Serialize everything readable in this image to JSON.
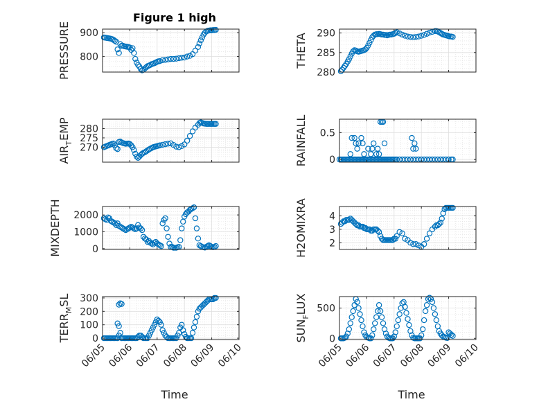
{
  "figure_title": "Figure 1 high",
  "xlabel": "Time",
  "colors": {
    "marker": "#0072BD",
    "axis": "#262626",
    "grid": "#DFDFDF",
    "background": "#FFFFFF"
  },
  "chart_data": [
    {
      "type": "scatter",
      "ylabel": "PRESSURE",
      "ylim": [
        735,
        915
      ],
      "yticks": [
        800,
        900
      ],
      "xlim": [
        "06/05",
        "06/10"
      ],
      "xticks": [
        "06/05",
        "06/06",
        "06/07",
        "06/08",
        "06/09",
        "06/10"
      ],
      "x_days": [
        0.05,
        0.1,
        0.15,
        0.2,
        0.25,
        0.3,
        0.35,
        0.4,
        0.45,
        0.5,
        0.55,
        0.6,
        0.65,
        0.7,
        0.75,
        0.8,
        0.85,
        0.9,
        0.95,
        1.0,
        1.05,
        1.1,
        1.15,
        1.2,
        1.25,
        1.3,
        1.35,
        1.4,
        1.45,
        1.5,
        1.55,
        1.6,
        1.65,
        1.7,
        1.75,
        1.8,
        1.85,
        1.9,
        1.95,
        2.0,
        2.05,
        2.1,
        2.2,
        2.3,
        2.4,
        2.5,
        2.6,
        2.7,
        2.8,
        2.9,
        3.0,
        3.1,
        3.2,
        3.3,
        3.4,
        3.5,
        3.55,
        3.6,
        3.65,
        3.7,
        3.75,
        3.8,
        3.85,
        3.9,
        3.95,
        4.0,
        4.05,
        4.1,
        4.15
      ],
      "y": [
        880,
        879,
        878,
        877,
        876,
        875,
        873,
        870,
        866,
        862,
        830,
        815,
        852,
        845,
        845,
        843,
        842,
        841,
        840,
        838,
        828,
        835,
        815,
        790,
        775,
        765,
        758,
        748,
        742,
        745,
        750,
        755,
        760,
        762,
        765,
        768,
        770,
        772,
        775,
        778,
        780,
        781,
        785,
        786,
        788,
        790,
        790,
        791,
        793,
        795,
        796,
        800,
        803,
        810,
        825,
        840,
        855,
        868,
        880,
        892,
        900,
        905,
        908,
        909,
        910,
        910,
        911,
        911,
        912
      ]
    },
    {
      "type": "scatter",
      "ylabel": "THETA",
      "ylim": [
        280,
        291
      ],
      "yticks": [
        280,
        285,
        290
      ],
      "xlim": [
        "06/05",
        "06/10"
      ],
      "xticks": [
        "06/05",
        "06/06",
        "06/07",
        "06/08",
        "06/09",
        "06/10"
      ],
      "x_days": [
        0.05,
        0.1,
        0.15,
        0.2,
        0.25,
        0.3,
        0.35,
        0.4,
        0.45,
        0.5,
        0.55,
        0.6,
        0.65,
        0.7,
        0.75,
        0.8,
        0.85,
        0.9,
        0.95,
        1.0,
        1.05,
        1.1,
        1.15,
        1.2,
        1.25,
        1.3,
        1.35,
        1.4,
        1.45,
        1.5,
        1.55,
        1.6,
        1.65,
        1.7,
        1.75,
        1.8,
        1.85,
        1.9,
        1.95,
        2.0,
        2.05,
        2.1,
        2.2,
        2.3,
        2.4,
        2.5,
        2.6,
        2.7,
        2.8,
        2.9,
        3.0,
        3.1,
        3.2,
        3.3,
        3.4,
        3.5,
        3.55,
        3.6,
        3.65,
        3.7,
        3.75,
        3.8,
        3.85,
        3.9,
        3.95,
        4.0,
        4.05,
        4.1,
        4.15
      ],
      "y": [
        280.2,
        280.6,
        281.1,
        281.6,
        282.1,
        282.7,
        283.3,
        284.0,
        284.7,
        285.3,
        285.6,
        285.5,
        285.3,
        285.2,
        285.3,
        285.4,
        285.5,
        285.6,
        285.8,
        286.2,
        286.8,
        287.5,
        288.2,
        288.9,
        289.3,
        289.6,
        289.7,
        289.7,
        289.8,
        289.7,
        289.6,
        289.6,
        289.5,
        289.5,
        289.4,
        289.5,
        289.6,
        289.6,
        289.7,
        289.8,
        290.0,
        290.2,
        289.9,
        289.6,
        289.3,
        289.1,
        289.0,
        288.9,
        289.0,
        289.1,
        289.3,
        289.5,
        289.8,
        290.1,
        290.3,
        290.5,
        290.5,
        290.4,
        290.2,
        290.0,
        289.8,
        289.6,
        289.5,
        289.4,
        289.3,
        289.2,
        289.1,
        289.1,
        289.0
      ]
    },
    {
      "type": "scatter",
      "ylabel": "AIR_TEMP",
      "ylim": [
        262,
        285
      ],
      "yticks": [
        270,
        275,
        280
      ],
      "xlim": [
        "06/05",
        "06/10"
      ],
      "xticks": [
        "06/05",
        "06/06",
        "06/07",
        "06/08",
        "06/09",
        "06/10"
      ],
      "x_days": [
        0.05,
        0.1,
        0.15,
        0.2,
        0.25,
        0.3,
        0.35,
        0.4,
        0.45,
        0.5,
        0.55,
        0.6,
        0.65,
        0.7,
        0.75,
        0.8,
        0.85,
        0.9,
        0.95,
        1.0,
        1.05,
        1.1,
        1.15,
        1.2,
        1.25,
        1.3,
        1.35,
        1.4,
        1.45,
        1.5,
        1.55,
        1.6,
        1.65,
        1.7,
        1.75,
        1.8,
        1.85,
        1.9,
        1.95,
        2.0,
        2.05,
        2.1,
        2.2,
        2.3,
        2.4,
        2.5,
        2.6,
        2.7,
        2.8,
        2.9,
        3.0,
        3.1,
        3.2,
        3.3,
        3.4,
        3.5,
        3.55,
        3.6,
        3.65,
        3.7,
        3.75,
        3.8,
        3.85,
        3.9,
        3.95,
        4.0,
        4.05,
        4.1,
        4.15
      ],
      "y": [
        270.0,
        270.3,
        270.6,
        270.9,
        271.2,
        271.5,
        271.8,
        272.0,
        271.0,
        269.5,
        269.0,
        272.8,
        273.0,
        272.5,
        272.2,
        272.0,
        271.8,
        271.9,
        272.0,
        271.7,
        271.0,
        270.0,
        268.5,
        266.5,
        265.0,
        264.3,
        265.0,
        265.8,
        266.5,
        267.0,
        267.3,
        267.8,
        268.3,
        268.8,
        269.2,
        269.6,
        270.0,
        270.2,
        270.4,
        270.6,
        270.8,
        271.0,
        271.3,
        271.6,
        271.9,
        272.1,
        271.2,
        270.3,
        270.0,
        270.6,
        271.5,
        273.5,
        276.0,
        278.5,
        280.5,
        282.0,
        283.0,
        283.3,
        283.0,
        282.7,
        282.6,
        282.5,
        282.5,
        282.5,
        282.5,
        282.5,
        282.5,
        282.5,
        282.5
      ]
    },
    {
      "type": "scatter",
      "ylabel": "RAINFALL",
      "ylim": [
        -0.05,
        0.75
      ],
      "yticks": [
        0,
        0.5
      ],
      "xlim": [
        "06/05",
        "06/10"
      ],
      "xticks": [
        "06/05",
        "06/06",
        "06/07",
        "06/08",
        "06/09",
        "06/10"
      ],
      "x_days": [
        0.0,
        0.05,
        0.1,
        0.15,
        0.2,
        0.25,
        0.3,
        0.35,
        0.4,
        0.45,
        0.5,
        0.55,
        0.6,
        0.65,
        0.7,
        0.75,
        0.8,
        0.85,
        0.9,
        0.95,
        1.0,
        1.05,
        1.1,
        1.15,
        1.2,
        1.25,
        1.3,
        1.35,
        1.4,
        1.45,
        1.5,
        1.55,
        1.6,
        1.65,
        1.7,
        1.75,
        1.8,
        1.85,
        1.9,
        1.95,
        2.0,
        2.05,
        2.1,
        2.2,
        2.3,
        2.4,
        2.5,
        2.6,
        2.7,
        2.8,
        2.9,
        3.0,
        3.1,
        3.2,
        3.3,
        3.4,
        3.5,
        3.6,
        3.7,
        3.8,
        3.9,
        4.0,
        4.1,
        4.15,
        0.4,
        0.45,
        0.55,
        0.6,
        0.65,
        0.7,
        0.8,
        0.85,
        0.9,
        1.05,
        1.15,
        1.2,
        1.25,
        1.35,
        1.4,
        1.45,
        1.5,
        1.55,
        1.6,
        1.65,
        2.65,
        2.7,
        2.75,
        2.8
      ],
      "y": [
        0,
        0,
        0,
        0,
        0,
        0,
        0,
        0,
        0,
        0,
        0,
        0,
        0,
        0,
        0,
        0,
        0,
        0,
        0,
        0,
        0,
        0,
        0,
        0,
        0,
        0,
        0,
        0,
        0,
        0,
        0,
        0,
        0,
        0,
        0,
        0,
        0,
        0,
        0,
        0,
        0,
        0,
        0,
        0,
        0,
        0,
        0,
        0,
        0,
        0,
        0,
        0,
        0,
        0,
        0,
        0,
        0,
        0,
        0,
        0,
        0,
        0,
        0,
        0,
        0.1,
        0.4,
        0.4,
        0.3,
        0.2,
        0.3,
        0.4,
        0.3,
        0.1,
        0.2,
        0.1,
        0.2,
        0.3,
        0.1,
        0.2,
        0.1,
        0.7,
        0.7,
        0.7,
        0.3,
        0.4,
        0.2,
        0.3,
        0.2
      ]
    },
    {
      "type": "scatter",
      "ylabel": "MIXDEPTH",
      "ylim": [
        -50,
        2500
      ],
      "yticks": [
        0,
        1000,
        2000
      ],
      "xlim": [
        "06/05",
        "06/10"
      ],
      "xticks": [
        "06/05",
        "06/06",
        "06/07",
        "06/08",
        "06/09",
        "06/10"
      ],
      "x_days": [
        0.05,
        0.1,
        0.15,
        0.2,
        0.25,
        0.3,
        0.35,
        0.4,
        0.45,
        0.5,
        0.55,
        0.6,
        0.65,
        0.7,
        0.75,
        0.8,
        0.85,
        0.9,
        0.95,
        1.0,
        1.05,
        1.1,
        1.15,
        1.2,
        1.25,
        1.3,
        1.35,
        1.4,
        1.45,
        1.5,
        1.55,
        1.6,
        1.65,
        1.7,
        1.75,
        1.8,
        1.85,
        1.9,
        1.95,
        2.0,
        2.05,
        2.1,
        2.15,
        2.2,
        2.25,
        2.3,
        2.35,
        2.4,
        2.45,
        2.5,
        2.55,
        2.6,
        2.65,
        2.7,
        2.75,
        2.8,
        2.85,
        2.9,
        2.95,
        3.0,
        3.05,
        3.1,
        3.15,
        3.2,
        3.25,
        3.3,
        3.35,
        3.4,
        3.45,
        3.5,
        3.55,
        3.6,
        3.65,
        3.7,
        3.75,
        3.8,
        3.85,
        3.9,
        3.95,
        4.0,
        4.05,
        4.1,
        4.15
      ],
      "y": [
        1800,
        1750,
        1700,
        1850,
        1800,
        1650,
        1600,
        1550,
        1500,
        1400,
        1500,
        1350,
        1300,
        1250,
        1200,
        1150,
        1100,
        1150,
        1200,
        1250,
        1300,
        1250,
        1200,
        1150,
        1200,
        1400,
        1250,
        1200,
        1100,
        700,
        600,
        550,
        400,
        450,
        350,
        300,
        250,
        350,
        400,
        300,
        250,
        200,
        150,
        1500,
        1700,
        1800,
        1200,
        700,
        300,
        100,
        100,
        50,
        50,
        50,
        80,
        100,
        500,
        1200,
        1600,
        1900,
        2050,
        2150,
        2200,
        2300,
        2350,
        2400,
        2450,
        1800,
        1200,
        600,
        200,
        150,
        100,
        80,
        60,
        100,
        150,
        200,
        150,
        100,
        80,
        100,
        150
      ]
    },
    {
      "type": "scatter",
      "ylabel": "H2OMIXRA",
      "ylim": [
        1.5,
        4.7
      ],
      "yticks": [
        2,
        3,
        4
      ],
      "xlim": [
        "06/05",
        "06/10"
      ],
      "xticks": [
        "06/05",
        "06/06",
        "06/07",
        "06/08",
        "06/09",
        "06/10"
      ],
      "x_days": [
        0.05,
        0.1,
        0.15,
        0.2,
        0.25,
        0.3,
        0.35,
        0.4,
        0.45,
        0.5,
        0.55,
        0.6,
        0.65,
        0.7,
        0.75,
        0.8,
        0.85,
        0.9,
        0.95,
        1.0,
        1.05,
        1.1,
        1.15,
        1.2,
        1.25,
        1.3,
        1.35,
        1.4,
        1.45,
        1.5,
        1.55,
        1.6,
        1.65,
        1.7,
        1.75,
        1.8,
        1.85,
        1.9,
        1.95,
        2.0,
        2.05,
        2.1,
        2.2,
        2.3,
        2.4,
        2.5,
        2.6,
        2.7,
        2.8,
        2.9,
        3.0,
        3.1,
        3.2,
        3.3,
        3.4,
        3.5,
        3.55,
        3.6,
        3.65,
        3.7,
        3.75,
        3.8,
        3.85,
        3.9,
        3.95,
        4.0,
        4.05,
        4.1,
        4.15
      ],
      "y": [
        3.4,
        3.5,
        3.6,
        3.6,
        3.7,
        3.7,
        3.7,
        3.8,
        3.7,
        3.6,
        3.5,
        3.4,
        3.3,
        3.3,
        3.2,
        3.2,
        3.2,
        3.1,
        3.1,
        3.0,
        3.0,
        3.0,
        2.9,
        2.9,
        3.0,
        3.0,
        3.0,
        2.9,
        2.8,
        2.5,
        2.3,
        2.2,
        2.2,
        2.2,
        2.2,
        2.2,
        2.2,
        2.2,
        2.2,
        2.3,
        2.3,
        2.5,
        2.8,
        2.7,
        2.3,
        2.2,
        2.0,
        1.9,
        1.9,
        1.8,
        1.7,
        1.9,
        2.3,
        2.7,
        3.0,
        3.2,
        3.3,
        3.3,
        3.4,
        3.5,
        3.8,
        4.2,
        4.5,
        4.6,
        4.6,
        4.6,
        4.6,
        4.6,
        4.6
      ]
    },
    {
      "type": "scatter",
      "ylabel": "TERR_MSL",
      "ylim": [
        -10,
        310
      ],
      "yticks": [
        0,
        100,
        200,
        300
      ],
      "xlim": [
        "06/05",
        "06/10"
      ],
      "xticks": [
        "06/05",
        "06/06",
        "06/07",
        "06/08",
        "06/09",
        "06/10"
      ],
      "x_days": [
        0.05,
        0.1,
        0.15,
        0.2,
        0.25,
        0.3,
        0.35,
        0.4,
        0.45,
        0.5,
        0.55,
        0.6,
        0.65,
        0.7,
        0.75,
        0.8,
        0.85,
        0.9,
        0.95,
        1.0,
        1.05,
        1.1,
        1.15,
        1.2,
        1.25,
        1.3,
        1.35,
        1.4,
        1.45,
        1.5,
        1.55,
        1.6,
        1.65,
        1.7,
        1.75,
        1.8,
        1.85,
        1.9,
        1.95,
        2.0,
        2.05,
        2.1,
        2.15,
        2.2,
        2.25,
        2.3,
        2.35,
        2.4,
        2.45,
        2.5,
        2.55,
        2.6,
        2.65,
        2.7,
        2.75,
        2.8,
        2.85,
        2.9,
        2.95,
        3.0,
        3.05,
        3.1,
        3.15,
        3.2,
        3.25,
        3.3,
        3.35,
        3.4,
        3.45,
        3.5,
        3.55,
        3.6,
        3.65,
        3.7,
        3.75,
        3.8,
        3.85,
        3.9,
        3.95,
        4.0,
        4.05,
        4.1,
        4.15,
        0.6,
        0.65,
        0.7,
        0.55,
        0.6
      ],
      "y": [
        0,
        0,
        0,
        0,
        0,
        0,
        0,
        0,
        0,
        0,
        0,
        20,
        40,
        0,
        0,
        0,
        0,
        0,
        0,
        0,
        0,
        0,
        0,
        0,
        0,
        10,
        20,
        20,
        10,
        0,
        0,
        0,
        0,
        20,
        40,
        60,
        80,
        100,
        120,
        140,
        130,
        120,
        100,
        60,
        40,
        20,
        10,
        0,
        0,
        0,
        0,
        0,
        0,
        0,
        20,
        40,
        80,
        100,
        60,
        30,
        10,
        0,
        0,
        0,
        0,
        40,
        80,
        120,
        160,
        200,
        220,
        230,
        240,
        250,
        260,
        270,
        280,
        290,
        290,
        290,
        290,
        300,
        300,
        250,
        260,
        255,
        110,
        90
      ]
    },
    {
      "type": "scatter",
      "ylabel": "SUN_FLUX",
      "ylim": [
        -20,
        690
      ],
      "yticks": [
        0,
        500
      ],
      "xlim": [
        "06/05",
        "06/10"
      ],
      "xticks": [
        "06/05",
        "06/06",
        "06/07",
        "06/08",
        "06/09",
        "06/10"
      ],
      "x_days": [
        0.05,
        0.1,
        0.15,
        0.2,
        0.25,
        0.3,
        0.35,
        0.4,
        0.45,
        0.5,
        0.55,
        0.6,
        0.65,
        0.7,
        0.75,
        0.8,
        0.85,
        0.9,
        0.95,
        1.0,
        1.05,
        1.1,
        1.15,
        1.2,
        1.25,
        1.3,
        1.35,
        1.4,
        1.45,
        1.5,
        1.55,
        1.6,
        1.65,
        1.7,
        1.75,
        1.8,
        1.85,
        1.9,
        1.95,
        2.0,
        2.05,
        2.1,
        2.15,
        2.2,
        2.25,
        2.3,
        2.35,
        2.4,
        2.45,
        2.5,
        2.55,
        2.6,
        2.65,
        2.7,
        2.75,
        2.8,
        2.85,
        2.9,
        2.95,
        3.0,
        3.05,
        3.1,
        3.15,
        3.2,
        3.25,
        3.3,
        3.35,
        3.4,
        3.45,
        3.5,
        3.55,
        3.6,
        3.65,
        3.7,
        3.75,
        3.8,
        3.85,
        3.9,
        3.95,
        4.0,
        4.05,
        4.1,
        4.15
      ],
      "y": [
        0,
        0,
        0,
        10,
        30,
        80,
        150,
        250,
        350,
        450,
        550,
        650,
        600,
        500,
        400,
        300,
        200,
        100,
        50,
        20,
        10,
        0,
        0,
        50,
        150,
        250,
        350,
        450,
        550,
        450,
        350,
        250,
        150,
        80,
        30,
        10,
        0,
        0,
        0,
        30,
        100,
        200,
        300,
        400,
        500,
        580,
        600,
        520,
        420,
        320,
        220,
        120,
        50,
        10,
        0,
        0,
        0,
        0,
        0,
        50,
        150,
        300,
        450,
        550,
        650,
        670,
        650,
        600,
        500,
        400,
        300,
        200,
        120,
        80,
        50,
        30,
        20,
        10,
        5,
        100,
        80,
        60,
        40
      ]
    }
  ]
}
